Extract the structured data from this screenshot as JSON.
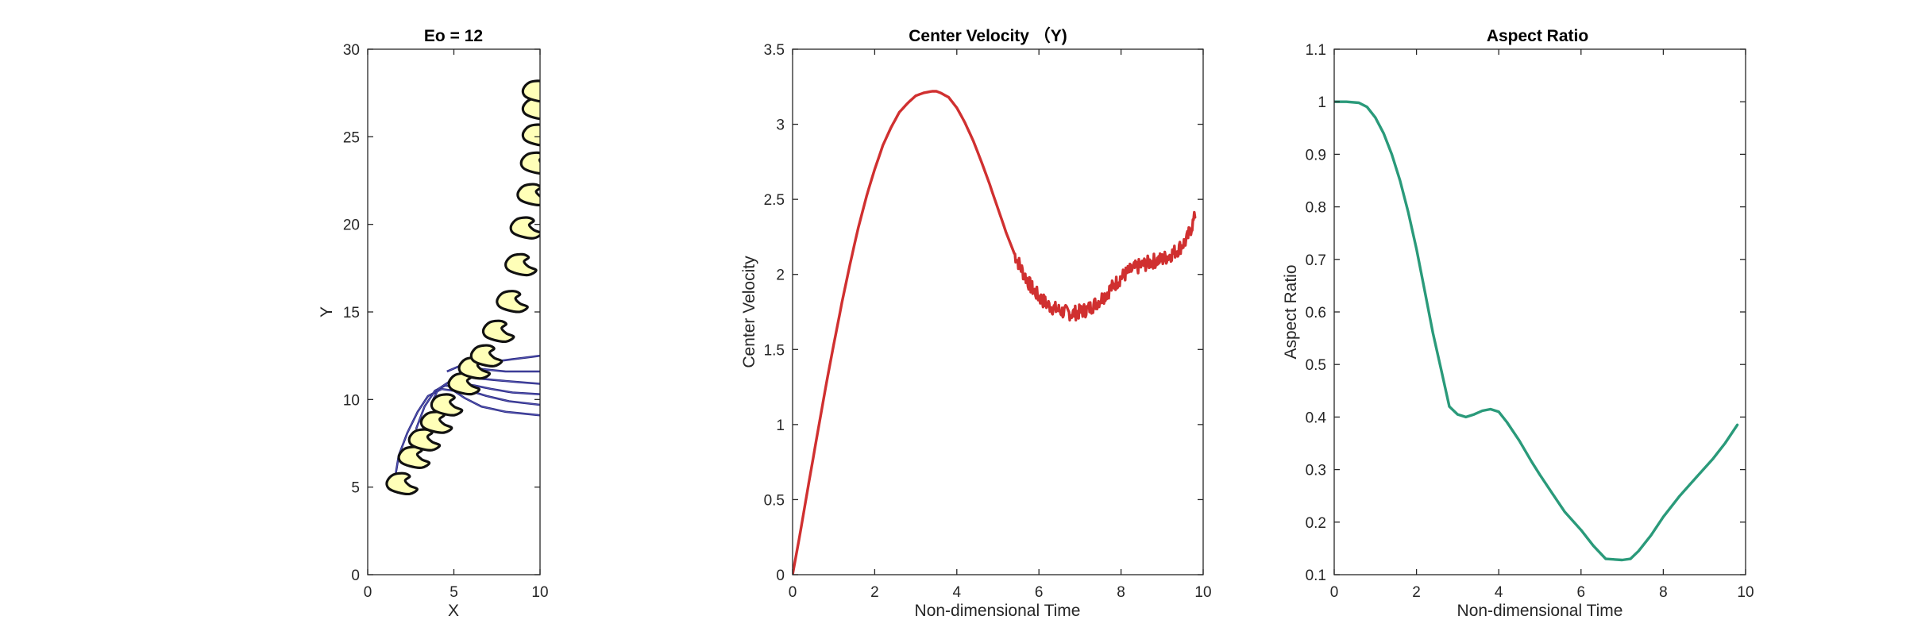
{
  "chart_data": [
    {
      "type": "scatter",
      "title": "Eo = 12",
      "xlabel": "X",
      "ylabel": "Y",
      "xlim": [
        0,
        10
      ],
      "ylim": [
        0,
        30
      ],
      "xticks": [
        0,
        5,
        10
      ],
      "yticks": [
        0,
        5,
        10,
        15,
        20,
        25,
        30
      ],
      "grid": false,
      "colors": {
        "fill": "#ffffb8",
        "edge": "#111111",
        "trail": "#2a2a80"
      },
      "trails": [
        {
          "x": [
            10,
            8,
            6.6,
            5.6,
            5.0,
            4.3,
            3.5,
            2.9,
            2.3,
            1.8,
            1.6
          ],
          "y": [
            9.1,
            9.3,
            9.6,
            10.1,
            10.5,
            10.6,
            10.2,
            9.3,
            8.1,
            6.8,
            5.6
          ]
        },
        {
          "x": [
            10,
            8.2,
            6.9,
            5.9,
            5.2,
            4.5,
            3.9,
            3.3,
            2.8
          ],
          "y": [
            9.7,
            9.9,
            10.2,
            10.5,
            10.7,
            10.8,
            10.5,
            9.6,
            8.3
          ]
        },
        {
          "x": [
            10,
            8.4,
            7.2,
            6.2,
            5.4,
            4.7,
            4.1,
            3.7
          ],
          "y": [
            10.3,
            10.4,
            10.6,
            10.8,
            10.9,
            11.0,
            10.6,
            9.8
          ]
        },
        {
          "x": [
            10,
            8.7,
            7.5,
            6.5,
            5.6,
            4.8
          ],
          "y": [
            10.9,
            11.0,
            11.1,
            11.2,
            11.3,
            11.2
          ]
        },
        {
          "x": [
            10,
            9.0,
            8.0,
            7.0,
            6.0,
            5.3,
            4.6
          ],
          "y": [
            11.6,
            11.6,
            11.6,
            11.7,
            11.8,
            11.9,
            11.6
          ]
        },
        {
          "x": [
            10,
            9.2,
            8.4,
            7.6,
            6.9,
            6.4
          ],
          "y": [
            12.5,
            12.4,
            12.3,
            12.2,
            12.1,
            12.0
          ]
        }
      ],
      "bubbles": [
        {
          "x": 2.0,
          "y": 5.2
        },
        {
          "x": 2.7,
          "y": 6.7
        },
        {
          "x": 3.3,
          "y": 7.7
        },
        {
          "x": 4.0,
          "y": 8.7
        },
        {
          "x": 4.6,
          "y": 9.7
        },
        {
          "x": 5.6,
          "y": 10.9
        },
        {
          "x": 6.2,
          "y": 11.8
        },
        {
          "x": 6.9,
          "y": 12.5
        },
        {
          "x": 7.6,
          "y": 13.9
        },
        {
          "x": 8.4,
          "y": 15.6
        },
        {
          "x": 8.9,
          "y": 17.7
        },
        {
          "x": 9.2,
          "y": 19.8
        },
        {
          "x": 9.6,
          "y": 21.7
        },
        {
          "x": 9.8,
          "y": 23.5
        },
        {
          "x": 9.9,
          "y": 25.1
        },
        {
          "x": 9.9,
          "y": 26.6
        },
        {
          "x": 9.9,
          "y": 27.6
        }
      ]
    },
    {
      "type": "line",
      "title": "Center Velocity （Y)",
      "xlabel": "Non-dimensional Time",
      "ylabel": "Center Velocity",
      "xlim": [
        0,
        10
      ],
      "ylim": [
        0,
        3.5
      ],
      "xticks": [
        0,
        2,
        4,
        6,
        8,
        10
      ],
      "yticks": [
        0,
        0.5,
        1,
        1.5,
        2,
        2.5,
        3,
        3.5
      ],
      "grid": false,
      "color": "#d03030",
      "series": [
        {
          "x": [
            0,
            0.2,
            0.4,
            0.6,
            0.8,
            1.0,
            1.2,
            1.4,
            1.6,
            1.8,
            2.0,
            2.2,
            2.4,
            2.6,
            2.8,
            3.0,
            3.2,
            3.4,
            3.5,
            3.6,
            3.8,
            4.0,
            4.2,
            4.4,
            4.6,
            4.8,
            5.0,
            5.2,
            5.4,
            5.6,
            5.8,
            6.0,
            6.2,
            6.4,
            6.6,
            6.8,
            7.0,
            7.2,
            7.4,
            7.6,
            7.8,
            8.0,
            8.2,
            8.4,
            8.6,
            8.8,
            9.0,
            9.2,
            9.4,
            9.6,
            9.8
          ],
          "y": [
            0.0,
            0.3,
            0.62,
            0.93,
            1.24,
            1.53,
            1.81,
            2.07,
            2.31,
            2.52,
            2.7,
            2.86,
            2.98,
            3.08,
            3.14,
            3.19,
            3.21,
            3.22,
            3.22,
            3.21,
            3.18,
            3.11,
            3.01,
            2.89,
            2.75,
            2.6,
            2.44,
            2.28,
            2.14,
            2.02,
            1.92,
            1.85,
            1.8,
            1.77,
            1.75,
            1.74,
            1.75,
            1.77,
            1.81,
            1.86,
            1.92,
            1.98,
            2.02,
            2.05,
            2.07,
            2.09,
            2.1,
            2.13,
            2.17,
            2.23,
            2.38
          ],
          "noise_from": 5.4,
          "noise_amp": 0.05
        }
      ]
    },
    {
      "type": "line",
      "title": "Aspect Ratio",
      "xlabel": "Non-dimensional Time",
      "ylabel": "Aspect Ratio",
      "xlim": [
        0,
        10
      ],
      "ylim": [
        0.1,
        1.1
      ],
      "xticks": [
        0,
        2,
        4,
        6,
        8,
        10
      ],
      "yticks": [
        0.1,
        0.2,
        0.3,
        0.4,
        0.5,
        0.6,
        0.7,
        0.8,
        0.9,
        1,
        1.1
      ],
      "grid": false,
      "color": "#2a9a7a",
      "series": [
        {
          "x": [
            0,
            0.3,
            0.6,
            0.8,
            1.0,
            1.2,
            1.4,
            1.6,
            1.8,
            2.0,
            2.2,
            2.4,
            2.6,
            2.8,
            3.0,
            3.2,
            3.4,
            3.6,
            3.8,
            4.0,
            4.2,
            4.5,
            4.8,
            5.0,
            5.3,
            5.6,
            6.0,
            6.3,
            6.6,
            7.0,
            7.2,
            7.4,
            7.7,
            8.0,
            8.4,
            8.8,
            9.2,
            9.5,
            9.8
          ],
          "y": [
            1.0,
            1.0,
            0.998,
            0.99,
            0.97,
            0.94,
            0.9,
            0.85,
            0.79,
            0.72,
            0.64,
            0.56,
            0.49,
            0.42,
            0.405,
            0.4,
            0.405,
            0.412,
            0.415,
            0.41,
            0.39,
            0.355,
            0.315,
            0.29,
            0.255,
            0.22,
            0.185,
            0.155,
            0.13,
            0.128,
            0.13,
            0.145,
            0.175,
            0.21,
            0.25,
            0.285,
            0.32,
            0.35,
            0.385
          ]
        }
      ]
    }
  ]
}
